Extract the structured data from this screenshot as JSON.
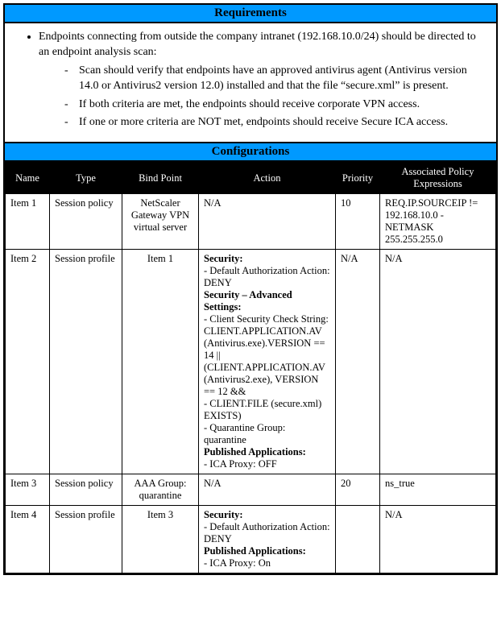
{
  "colors": {
    "header_bg": "#0099ff",
    "table_header_bg": "#000000",
    "table_header_fg": "#ffffff",
    "border": "#000000",
    "page_bg": "#ffffff"
  },
  "sections": {
    "requirements_title": "Requirements",
    "configurations_title": "Configurations"
  },
  "requirements": {
    "main": "Endpoints connecting from outside the company intranet (192.168.10.0/24) should be directed to an endpoint analysis scan:",
    "subs": {
      "s1": "Scan should verify that endpoints have an approved antivirus agent (Antivirus version 14.0 or Antivirus2 version 12.0) installed and that the file “secure.xml” is present.",
      "s2": "If both criteria are met, the endpoints should receive corporate VPN access.",
      "s3": "If one or more criteria are NOT met, endpoints should receive Secure ICA access."
    }
  },
  "table": {
    "headers": {
      "name": "Name",
      "type": "Type",
      "bind": "Bind Point",
      "action": "Action",
      "priority": "Priority",
      "expr": "Associated Policy Expressions"
    },
    "r1": {
      "name": "Item 1",
      "type": "Session policy",
      "bind": "NetScaler Gateway VPN virtual server",
      "action": "N/A",
      "priority": "10",
      "expr": "REQ.IP.SOURCEIP != 192.168.10.0 -NETMASK 255.255.255.0"
    },
    "r2": {
      "name": "Item 2",
      "type": "Session profile",
      "bind": "Item 1",
      "priority": "N/A",
      "expr": "N/A",
      "action": {
        "h1": "Security:",
        "l1": "- Default Authorization Action: DENY",
        "h2": "Security – Advanced Settings:",
        "l2": "- Client Security Check String: CLIENT.APPLICATION.AV (Antivirus.exe).VERSION == 14 || (CLIENT.APPLICATION.AV (Antivirus2.exe), VERSION == 12 &&",
        "l3": "- CLIENT.FILE (secure.xml) EXISTS)",
        "l4": "- Quarantine Group: quarantine",
        "h3": "Published Applications:",
        "l5": "- ICA Proxy: OFF"
      }
    },
    "r3": {
      "name": "Item 3",
      "type": "Session policy",
      "bind": "AAA Group: quarantine",
      "action": "N/A",
      "priority": "20",
      "expr": "ns_true"
    },
    "r4": {
      "name": "Item 4",
      "type": "Session profile",
      "bind": "Item 3",
      "priority": "",
      "expr": "N/A",
      "action": {
        "h1": "Security:",
        "l1": "- Default Authorization Action: DENY",
        "h2": "Published Applications:",
        "l2": "- ICA Proxy: On"
      }
    }
  }
}
